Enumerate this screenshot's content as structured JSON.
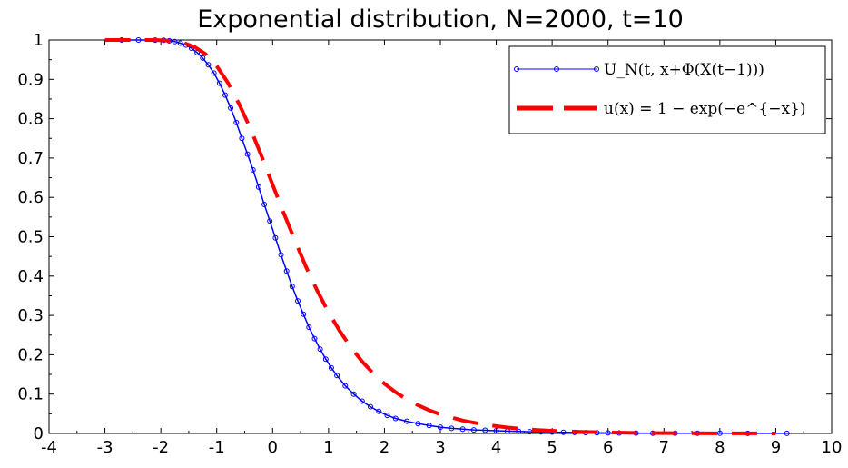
{
  "chart_data": {
    "type": "line",
    "title": "Exponential distribution, N=2000, t=10",
    "xlim": [
      -4,
      10
    ],
    "ylim": [
      0,
      1
    ],
    "grid": false,
    "legend_placement": "top-right",
    "x_ticks": [
      "-4",
      "-3",
      "-2",
      "-1",
      "0",
      "1",
      "2",
      "3",
      "4",
      "5",
      "6",
      "7",
      "8",
      "9",
      "10"
    ],
    "y_ticks": [
      "0",
      "0.1",
      "0.2",
      "0.3",
      "0.4",
      "0.5",
      "0.6",
      "0.7",
      "0.8",
      "0.9",
      "1"
    ],
    "series": [
      {
        "name": "U_N(t, x+Φ(X(t−1)))",
        "color": "#0000ff",
        "style": "solid line with circle markers",
        "x": [
          -2.7,
          -2.4,
          -2.1,
          -1.95,
          -1.85,
          -1.75,
          -1.65,
          -1.55,
          -1.45,
          -1.35,
          -1.25,
          -1.15,
          -1.05,
          -0.95,
          -0.85,
          -0.75,
          -0.65,
          -0.55,
          -0.45,
          -0.35,
          -0.25,
          -0.15,
          -0.05,
          0.05,
          0.15,
          0.25,
          0.35,
          0.45,
          0.55,
          0.65,
          0.75,
          0.85,
          0.95,
          1.05,
          1.15,
          1.3,
          1.45,
          1.6,
          1.75,
          1.9,
          2.05,
          2.2,
          2.4,
          2.6,
          2.8,
          3.0,
          3.2,
          3.4,
          3.6,
          3.8,
          4.0,
          4.2,
          4.4,
          4.6,
          4.8,
          5.0,
          5.2,
          5.4,
          5.6,
          5.8,
          6.0,
          6.2,
          6.5,
          6.8,
          7.2,
          7.6,
          8.0,
          8.5,
          9.2
        ],
        "y": [
          1.0,
          1.0,
          0.9997,
          0.9992,
          0.998,
          0.996,
          0.992,
          0.987,
          0.979,
          0.968,
          0.954,
          0.937,
          0.916,
          0.89,
          0.86,
          0.827,
          0.79,
          0.75,
          0.71,
          0.67,
          0.626,
          0.582,
          0.54,
          0.497,
          0.454,
          0.413,
          0.374,
          0.337,
          0.303,
          0.27,
          0.241,
          0.214,
          0.189,
          0.167,
          0.147,
          0.121,
          0.1,
          0.082,
          0.068,
          0.056,
          0.046,
          0.038,
          0.031,
          0.025,
          0.02,
          0.016,
          0.013,
          0.011,
          0.009,
          0.008,
          0.007,
          0.006,
          0.005,
          0.0045,
          0.004,
          0.0035,
          0.003,
          0.0025,
          0.002,
          0.0018,
          0.0015,
          0.0012,
          0.001,
          0.0008,
          0.0006,
          0.0005,
          0.0004,
          0.0003,
          0.0002
        ]
      },
      {
        "name": "u(x) = 1 − exp(−e^{−x})",
        "color": "#ff0000",
        "style": "thick dashed line",
        "x": [
          -3.0,
          -2.8,
          -2.6,
          -2.4,
          -2.2,
          -2.0,
          -1.8,
          -1.6,
          -1.4,
          -1.2,
          -1.0,
          -0.8,
          -0.6,
          -0.4,
          -0.2,
          0.0,
          0.2,
          0.4,
          0.6,
          0.8,
          1.0,
          1.2,
          1.4,
          1.6,
          1.8,
          2.0,
          2.2,
          2.4,
          2.6,
          2.8,
          3.0,
          3.4,
          3.8,
          4.2,
          4.6,
          5.0,
          5.5,
          6.0,
          6.5,
          7.0,
          7.5,
          8.0,
          8.5,
          9.0
        ],
        "y": [
          1.0,
          1.0,
          1.0,
          1.0,
          0.9999,
          0.9994,
          0.9977,
          0.9929,
          0.9827,
          0.9639,
          0.934,
          0.8915,
          0.8377,
          0.7752,
          0.7052,
          0.6321,
          0.5596,
          0.4898,
          0.4227,
          0.3624,
          0.3078,
          0.2602,
          0.2187,
          0.1829,
          0.1527,
          0.1266,
          0.1049,
          0.0866,
          0.0716,
          0.059,
          0.0486,
          0.0328,
          0.0221,
          0.0149,
          0.01,
          0.0067,
          0.0041,
          0.0025,
          0.0015,
          0.0009,
          0.0006,
          0.0003,
          0.0002,
          0.0001
        ]
      }
    ]
  }
}
